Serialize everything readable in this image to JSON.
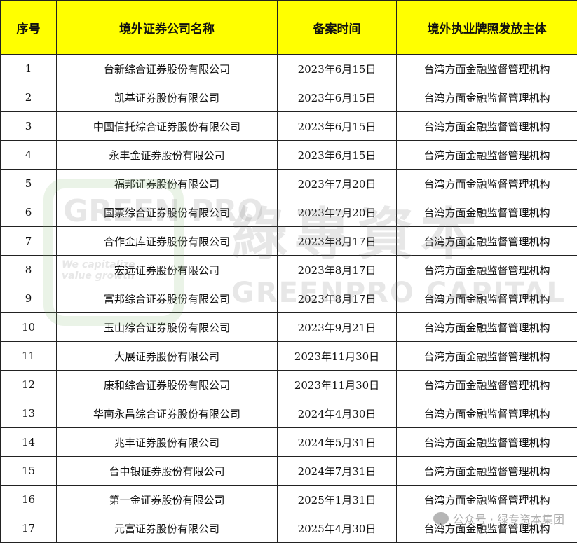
{
  "headers": [
    "序号",
    "境外证券公司名称",
    "备案时间",
    "境外执业牌照发放主体"
  ],
  "rows": [
    [
      "1",
      "台新综合证券股份有限公司",
      "2023年6月15日",
      "台湾方面金融监督管理机构"
    ],
    [
      "2",
      "凯基证券股份有限公司",
      "2023年6月15日",
      "台湾方面金融监督管理机构"
    ],
    [
      "3",
      "中国信托综合证券股份有限公司",
      "2023年6月15日",
      "台湾方面金融监督管理机构"
    ],
    [
      "4",
      "永丰金证券股份有限公司",
      "2023年6月15日",
      "台湾方面金融监督管理机构"
    ],
    [
      "5",
      "福邦证券股份有限公司",
      "2023年7月20日",
      "台湾方面金融监督管理机构"
    ],
    [
      "6",
      "国票综合证券股份有限公司",
      "2023年7月20日",
      "台湾方面金融监督管理机构"
    ],
    [
      "7",
      "合作金库证券股份有限公司",
      "2023年8月17日",
      "台湾方面金融监督管理机构"
    ],
    [
      "8",
      "宏远证券股份有限公司",
      "2023年8月17日",
      "台湾方面金融监督管理机构"
    ],
    [
      "9",
      "富邦综合证券股份有限公司",
      "2023年8月17日",
      "台湾方面金融监督管理机构"
    ],
    [
      "10",
      "玉山综合证券股份有限公司",
      "2023年9月21日",
      "台湾方面金融监督管理机构"
    ],
    [
      "11",
      "大展证券股份有限公司",
      "2023年11月30日",
      "台湾方面金融监督管理机构"
    ],
    [
      "12",
      "康和综合证券股份有限公司",
      "2023年11月30日",
      "台湾方面金融监督管理机构"
    ],
    [
      "13",
      "华南永昌综合证券股份有限公司",
      "2024年4月30日",
      "台湾方面金融监督管理机构"
    ],
    [
      "14",
      "兆丰证券股份有限公司",
      "2024年5月31日",
      "台湾方面金融监督管理机构"
    ],
    [
      "15",
      "台中银证券股份有限公司",
      "2024年7月31日",
      "台湾方面金融监督管理机构"
    ],
    [
      "16",
      "第一金证券股份有限公司",
      "2025年1月31日",
      "台湾方面金融监督管理机构"
    ],
    [
      "17",
      "元富证券股份有限公司",
      "2025年4月30日",
      "台湾方面金融监督管理机构"
    ]
  ],
  "watermark": {
    "logo_text": "GREEN PRO",
    "tagline": "We capitalize value growth",
    "cn": "綠專資本",
    "en": "GREENPRO CAPITAL",
    "wechat": "公众号 · 绿专资本集团"
  },
  "colors": {
    "header_bg": "#ffff00"
  }
}
